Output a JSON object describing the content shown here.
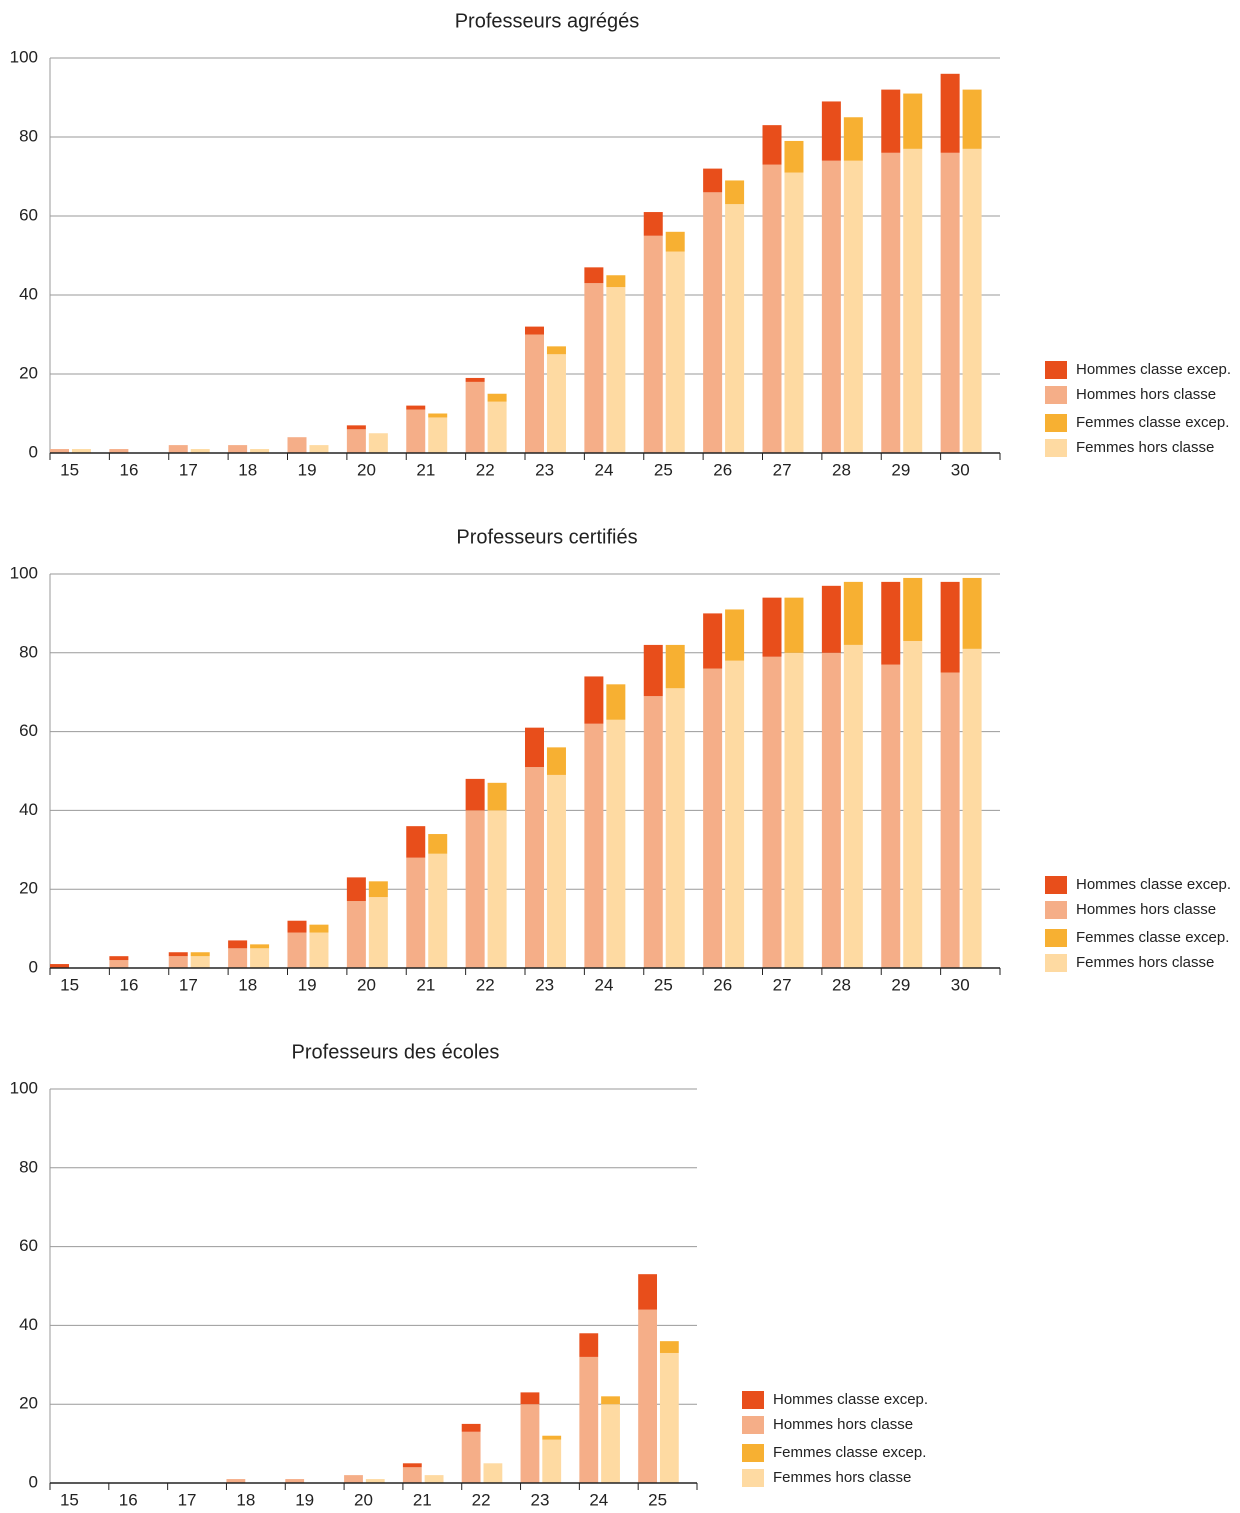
{
  "chart_data": [
    {
      "type": "bar",
      "title": "Professeurs agrégés",
      "categories": [
        "15",
        "16",
        "17",
        "18",
        "19",
        "20",
        "21",
        "22",
        "23",
        "24",
        "25",
        "26",
        "27",
        "28",
        "29",
        "30"
      ],
      "series": [
        {
          "name": "Hommes classe excep.",
          "color": "#e84e1b",
          "stack": 0,
          "values": [
            0,
            0,
            0,
            0,
            0,
            1,
            1,
            1,
            2,
            4,
            6,
            6,
            10,
            15,
            16,
            20
          ]
        },
        {
          "name": "Hommes hors classe",
          "color": "#f5ae88",
          "stack": 0,
          "values": [
            1,
            1,
            2,
            2,
            4,
            6,
            11,
            18,
            30,
            43,
            55,
            66,
            73,
            74,
            76,
            76
          ]
        },
        {
          "name": "Femmes classe excep.",
          "color": "#f7b032",
          "stack": 1,
          "values": [
            0,
            0,
            0,
            0,
            0,
            0,
            1,
            2,
            2,
            3,
            5,
            6,
            8,
            11,
            14,
            15
          ]
        },
        {
          "name": "Femmes hors classe",
          "color": "#fedaa2",
          "stack": 1,
          "values": [
            1,
            0,
            1,
            1,
            2,
            5,
            9,
            13,
            25,
            42,
            51,
            63,
            71,
            74,
            77,
            77
          ]
        }
      ],
      "ylim": [
        0,
        100
      ],
      "yticks": [
        0,
        20,
        40,
        60,
        80,
        100
      ],
      "grid": true,
      "legend": "right"
    },
    {
      "type": "bar",
      "title": "Professeurs certifiés",
      "categories": [
        "15",
        "16",
        "17",
        "18",
        "19",
        "20",
        "21",
        "22",
        "23",
        "24",
        "25",
        "26",
        "27",
        "28",
        "29",
        "30"
      ],
      "series": [
        {
          "name": "Hommes classe excep.",
          "color": "#e84e1b",
          "stack": 0,
          "values": [
            1,
            1,
            1,
            2,
            3,
            6,
            8,
            8,
            10,
            12,
            13,
            14,
            15,
            17,
            21,
            23
          ]
        },
        {
          "name": "Hommes hors classe",
          "color": "#f5ae88",
          "stack": 0,
          "values": [
            0,
            2,
            3,
            5,
            9,
            17,
            28,
            40,
            51,
            62,
            69,
            76,
            79,
            80,
            77,
            75
          ]
        },
        {
          "name": "Femmes classe excep.",
          "color": "#f7b032",
          "stack": 1,
          "values": [
            0,
            0,
            1,
            1,
            2,
            4,
            5,
            7,
            7,
            9,
            11,
            13,
            14,
            16,
            16,
            18
          ]
        },
        {
          "name": "Femmes hors classe",
          "color": "#fedaa2",
          "stack": 1,
          "values": [
            0,
            0,
            3,
            5,
            9,
            18,
            29,
            40,
            49,
            63,
            71,
            78,
            80,
            82,
            83,
            81
          ]
        }
      ],
      "ylim": [
        0,
        100
      ],
      "yticks": [
        0,
        20,
        40,
        60,
        80,
        100
      ],
      "grid": true,
      "legend": "right"
    },
    {
      "type": "bar",
      "title": "Professeurs des écoles",
      "categories": [
        "15",
        "16",
        "17",
        "18",
        "19",
        "20",
        "21",
        "22",
        "23",
        "24",
        "25"
      ],
      "series": [
        {
          "name": "Hommes classe excep.",
          "color": "#e84e1b",
          "stack": 0,
          "values": [
            0,
            0,
            0,
            0,
            0,
            0,
            1,
            2,
            3,
            6,
            9
          ]
        },
        {
          "name": "Hommes hors classe",
          "color": "#f5ae88",
          "stack": 0,
          "values": [
            0,
            0,
            0,
            1,
            1,
            2,
            4,
            13,
            20,
            32,
            44
          ]
        },
        {
          "name": "Femmes classe excep.",
          "color": "#f7b032",
          "stack": 1,
          "values": [
            0,
            0,
            0,
            0,
            0,
            0,
            0,
            0,
            1,
            2,
            3
          ]
        },
        {
          "name": "Femmes hors classe",
          "color": "#fedaa2",
          "stack": 1,
          "values": [
            0,
            0,
            0,
            0,
            0,
            1,
            2,
            5,
            11,
            20,
            33
          ]
        }
      ],
      "ylim": [
        0,
        100
      ],
      "yticks": [
        0,
        20,
        40,
        60,
        80,
        100
      ],
      "grid": true,
      "legend": "right"
    }
  ]
}
